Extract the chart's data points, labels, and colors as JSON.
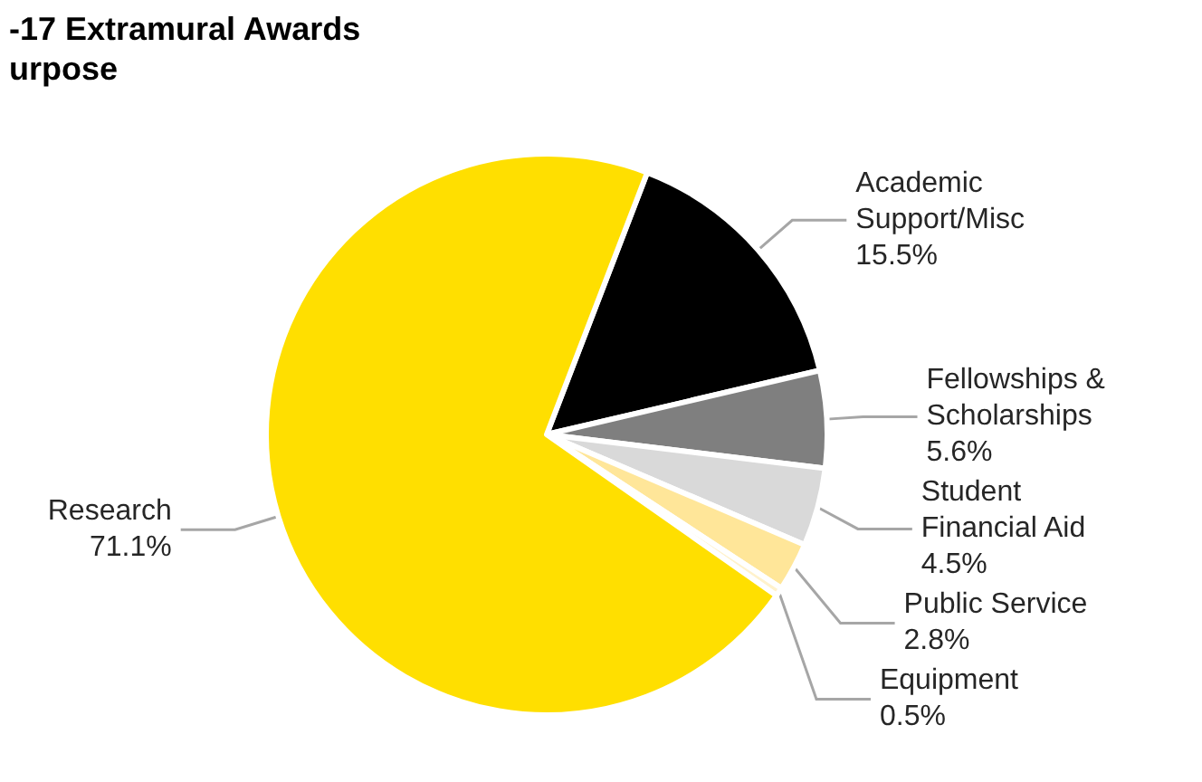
{
  "chart_data": {
    "type": "pie",
    "title": "-17 Extramural Awards\nurpose",
    "categories": [
      "Academic\nSupport/Misc",
      "Fellowships &\nScholarships",
      "Student\nFinancial Aid",
      "Public Service",
      "Equipment",
      "Research"
    ],
    "values": [
      15.5,
      5.6,
      4.5,
      2.8,
      0.5,
      71.1
    ],
    "value_labels": [
      "15.5%",
      "5.6%",
      "4.5%",
      "2.8%",
      "0.5%",
      "71.1%"
    ],
    "colors": [
      "#000000",
      "#7f7f7f",
      "#d9d9d9",
      "#ffe699",
      "#fff2cc",
      "#ffdf00"
    ],
    "legend": false
  }
}
